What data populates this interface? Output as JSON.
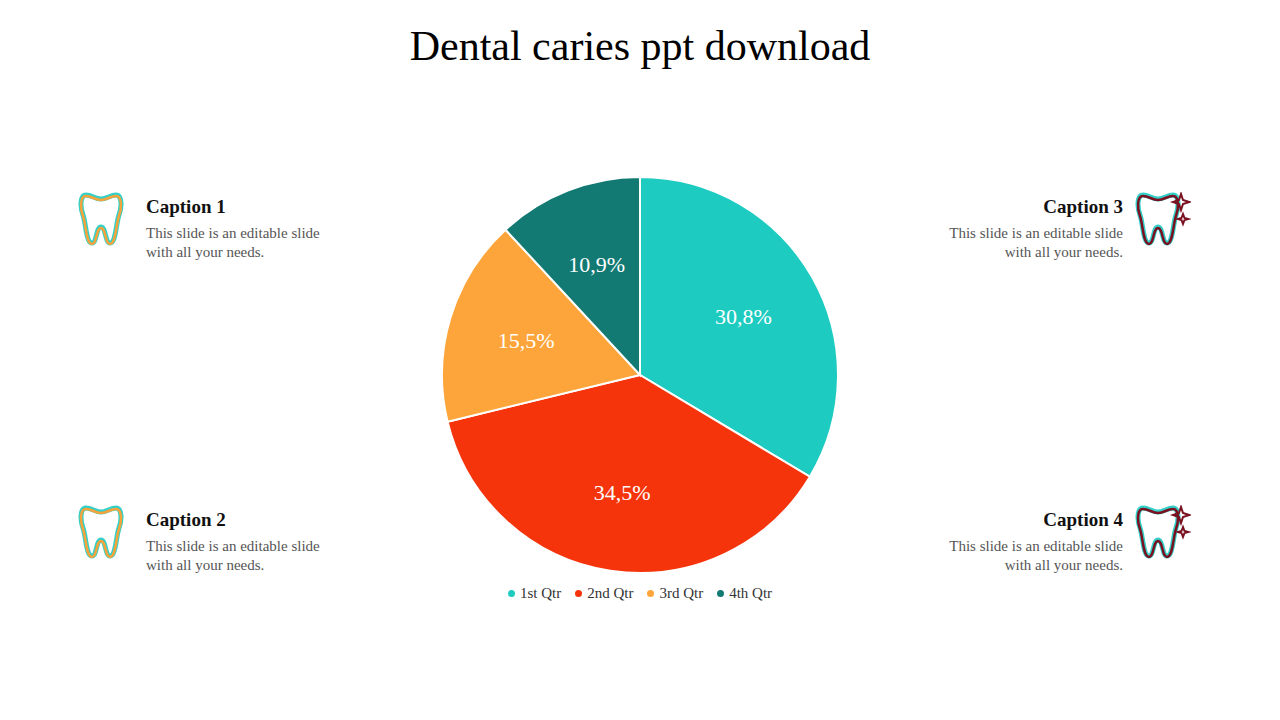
{
  "chart_data": {
    "type": "pie",
    "title": "Dental caries ppt download",
    "categories": [
      "1st Qtr",
      "2nd Qtr",
      "3rd Qtr",
      "4th Qtr"
    ],
    "values": [
      30.8,
      34.5,
      15.5,
      10.9
    ],
    "value_labels": [
      "30,8%",
      "34,5%",
      "15,5%",
      "10,9%"
    ],
    "colors": [
      "#1ecbc1",
      "#f5340c",
      "#fda53a",
      "#127a73"
    ],
    "data_labels": true,
    "legend": "bottom"
  },
  "captions": [
    {
      "title": "Caption 1",
      "text": "This slide is an editable slide with all your needs."
    },
    {
      "title": "Caption 2",
      "text": "This slide is an editable slide with all your needs."
    },
    {
      "title": "Caption 3",
      "text": "This slide is an editable slide with all your needs."
    },
    {
      "title": "Caption 4",
      "text": "This slide is an editable slide with all your needs."
    }
  ]
}
